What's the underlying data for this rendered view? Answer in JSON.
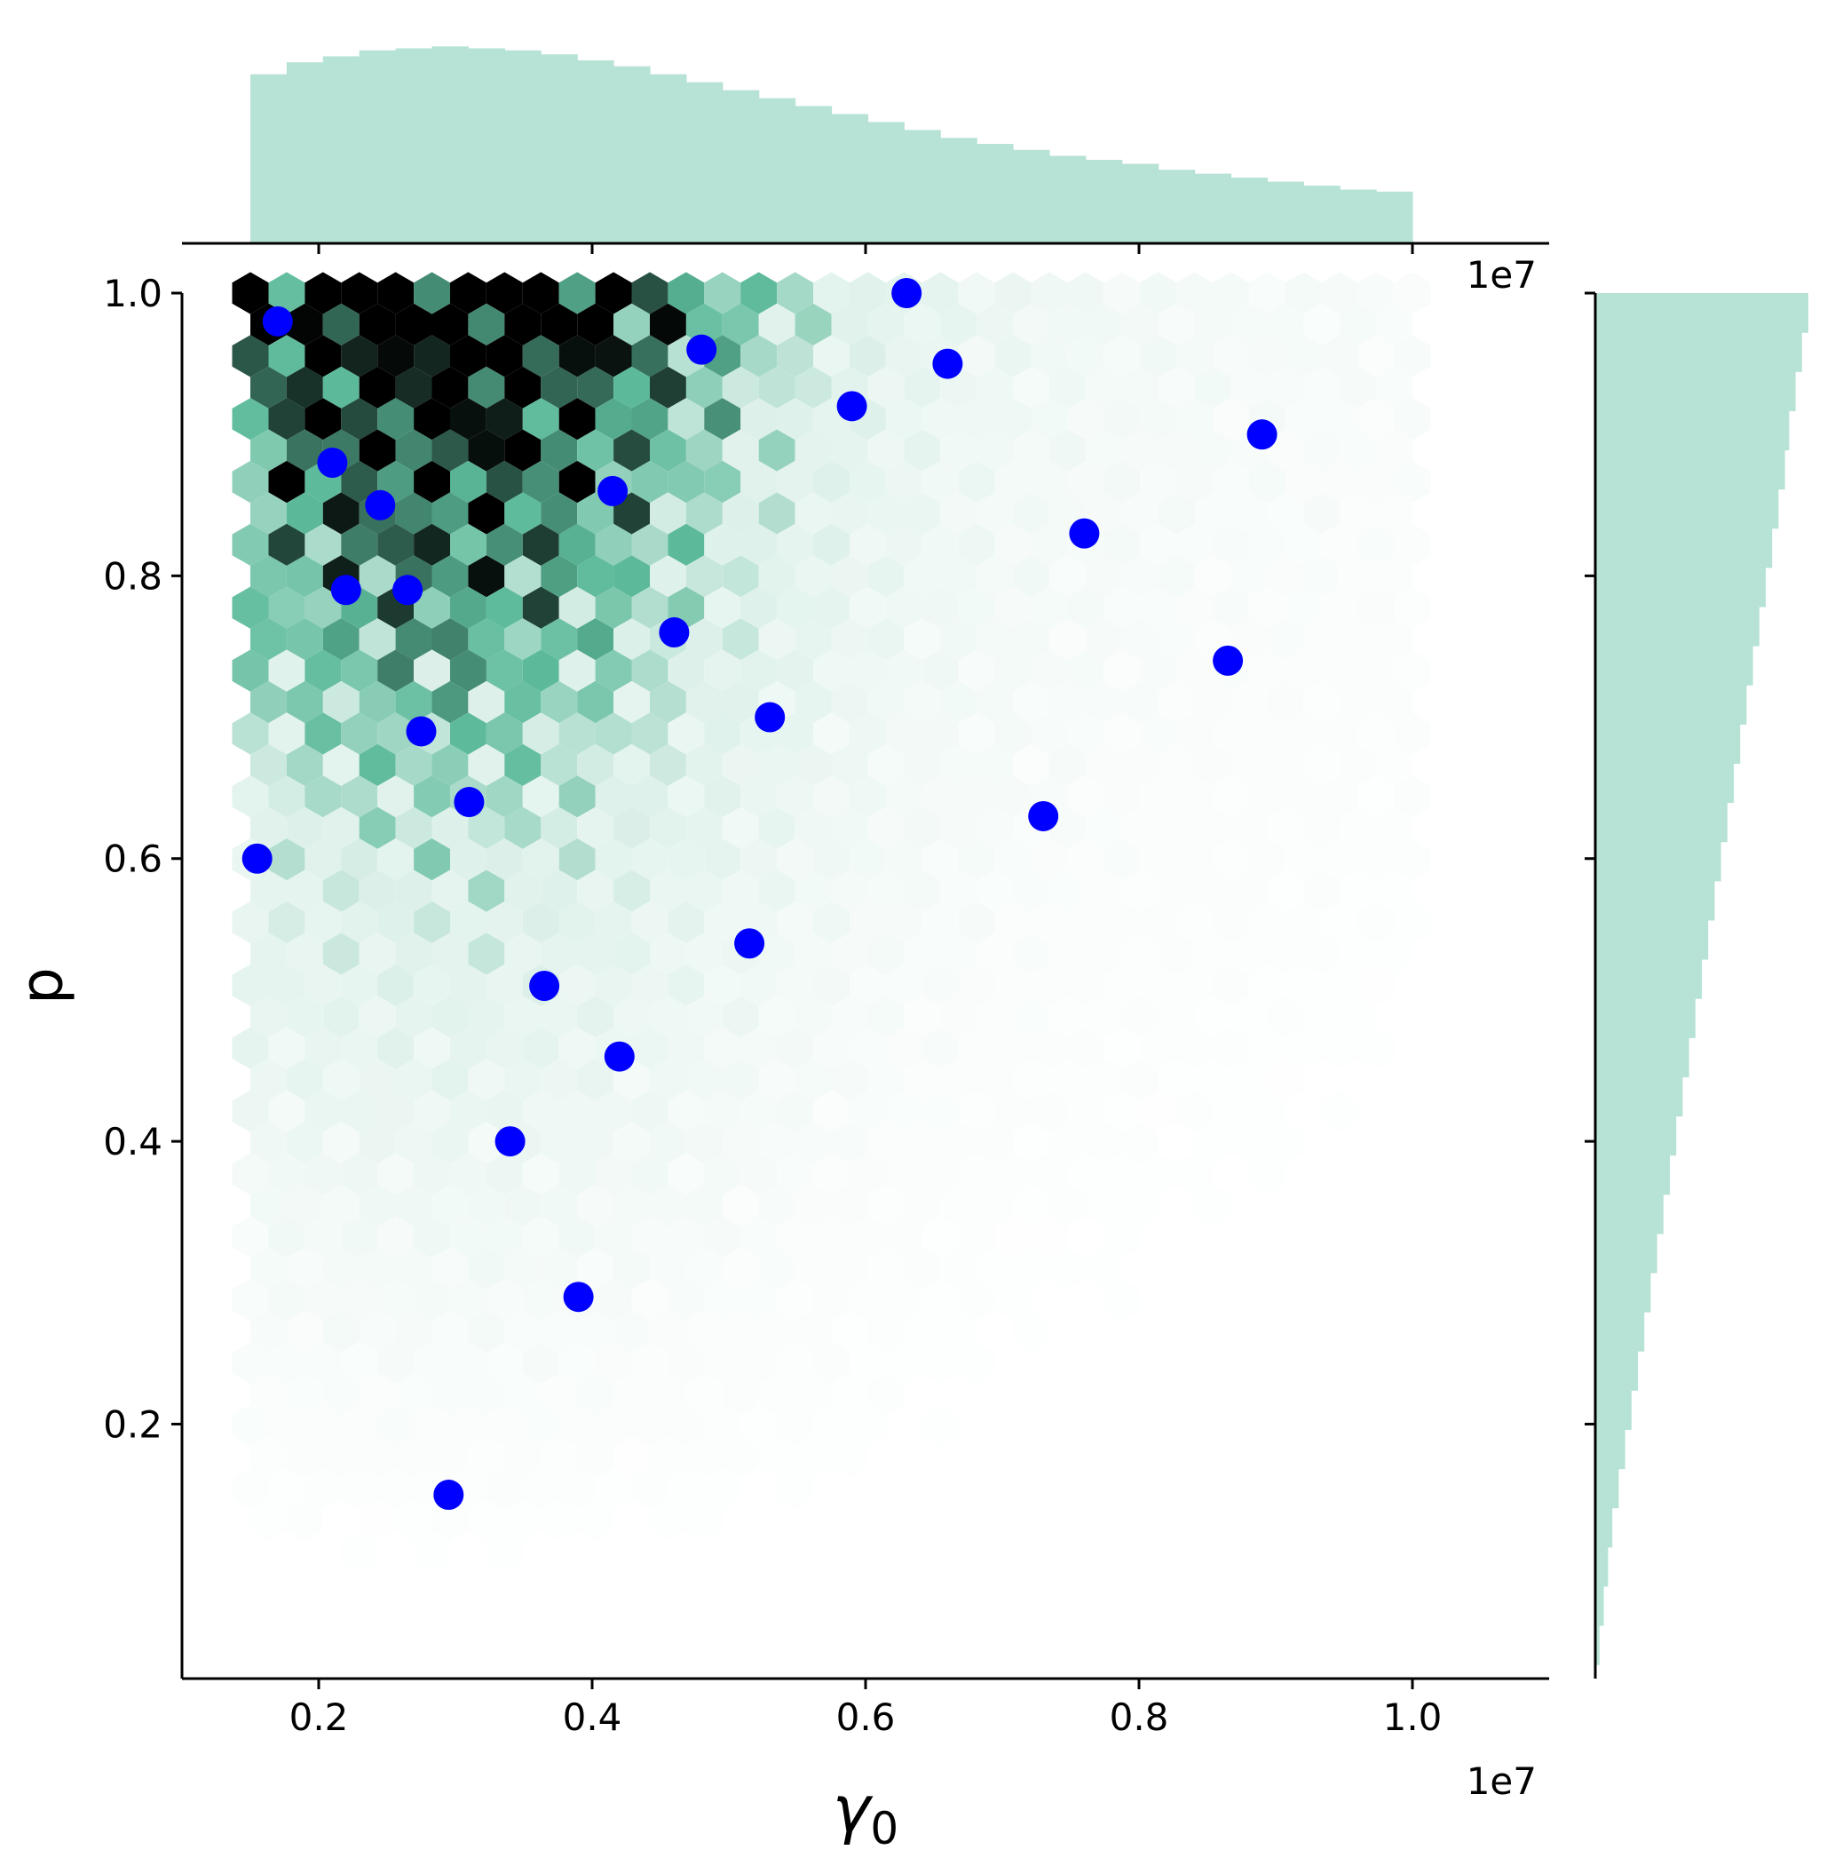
{
  "chart_data": {
    "type": "scatter",
    "subtype": "hexbin jointplot with marginal histograms and overlaid scatter points",
    "xlabel": "γ",
    "xlabel_subscript": "0",
    "ylabel": "p",
    "x_offset_text": "1e7",
    "y_offset_text": "1e7",
    "xlim": [
      0.1,
      1.1
    ],
    "ylim": [
      0.02,
      1.0
    ],
    "x_ticks": [
      0.2,
      0.4,
      0.6,
      0.8,
      1.0
    ],
    "x_tick_labels": [
      "0.2",
      "0.4",
      "0.6",
      "0.8",
      "1.0"
    ],
    "y_ticks": [
      0.2,
      0.4,
      0.6,
      0.8,
      1.0
    ],
    "y_tick_labels": [
      "0.2",
      "0.4",
      "0.6",
      "0.8",
      "1.0"
    ],
    "grid": false,
    "colors": {
      "hex_low": "#ffffff",
      "hex_mid": "#5cba9a",
      "hex_high": "#000000",
      "histogram": "#b7e2d6",
      "points": "#0000ff"
    },
    "hexbin_extent": {
      "x": [
        0.15,
        1.0
      ],
      "y": [
        0.03,
        1.0
      ]
    },
    "points": [
      {
        "x": 0.17,
        "y": 0.98
      },
      {
        "x": 0.48,
        "y": 0.96
      },
      {
        "x": 0.63,
        "y": 1.0
      },
      {
        "x": 0.66,
        "y": 0.95
      },
      {
        "x": 0.59,
        "y": 0.92
      },
      {
        "x": 0.89,
        "y": 0.9
      },
      {
        "x": 0.21,
        "y": 0.88
      },
      {
        "x": 0.245,
        "y": 0.85
      },
      {
        "x": 0.415,
        "y": 0.86
      },
      {
        "x": 0.76,
        "y": 0.83
      },
      {
        "x": 0.22,
        "y": 0.79
      },
      {
        "x": 0.265,
        "y": 0.79
      },
      {
        "x": 0.46,
        "y": 0.76
      },
      {
        "x": 0.865,
        "y": 0.74
      },
      {
        "x": 0.53,
        "y": 0.7
      },
      {
        "x": 0.275,
        "y": 0.69
      },
      {
        "x": 0.31,
        "y": 0.64
      },
      {
        "x": 0.73,
        "y": 0.63
      },
      {
        "x": 0.155,
        "y": 0.6
      },
      {
        "x": 0.515,
        "y": 0.54
      },
      {
        "x": 0.365,
        "y": 0.51
      },
      {
        "x": 0.42,
        "y": 0.46
      },
      {
        "x": 0.34,
        "y": 0.4
      },
      {
        "x": 0.39,
        "y": 0.29
      },
      {
        "x": 0.295,
        "y": 0.15
      }
    ],
    "x_marginal_histogram": {
      "bin_range": [
        0.15,
        1.0
      ],
      "relative_heights": [
        0.85,
        0.91,
        0.94,
        0.97,
        0.98,
        0.99,
        0.98,
        0.97,
        0.95,
        0.92,
        0.89,
        0.85,
        0.81,
        0.77,
        0.73,
        0.69,
        0.65,
        0.61,
        0.57,
        0.53,
        0.5,
        0.47,
        0.44,
        0.42,
        0.4,
        0.37,
        0.35,
        0.33,
        0.31,
        0.29,
        0.27,
        0.26
      ]
    },
    "y_marginal_histogram": {
      "bin_range": [
        0.03,
        1.0
      ],
      "relative_heights_top_to_bottom": [
        1.0,
        0.97,
        0.94,
        0.91,
        0.89,
        0.86,
        0.83,
        0.8,
        0.77,
        0.74,
        0.71,
        0.68,
        0.65,
        0.62,
        0.59,
        0.56,
        0.53,
        0.5,
        0.47,
        0.44,
        0.41,
        0.38,
        0.35,
        0.32,
        0.29,
        0.26,
        0.23,
        0.2,
        0.17,
        0.14,
        0.11,
        0.08,
        0.06,
        0.04,
        0.02
      ]
    }
  }
}
